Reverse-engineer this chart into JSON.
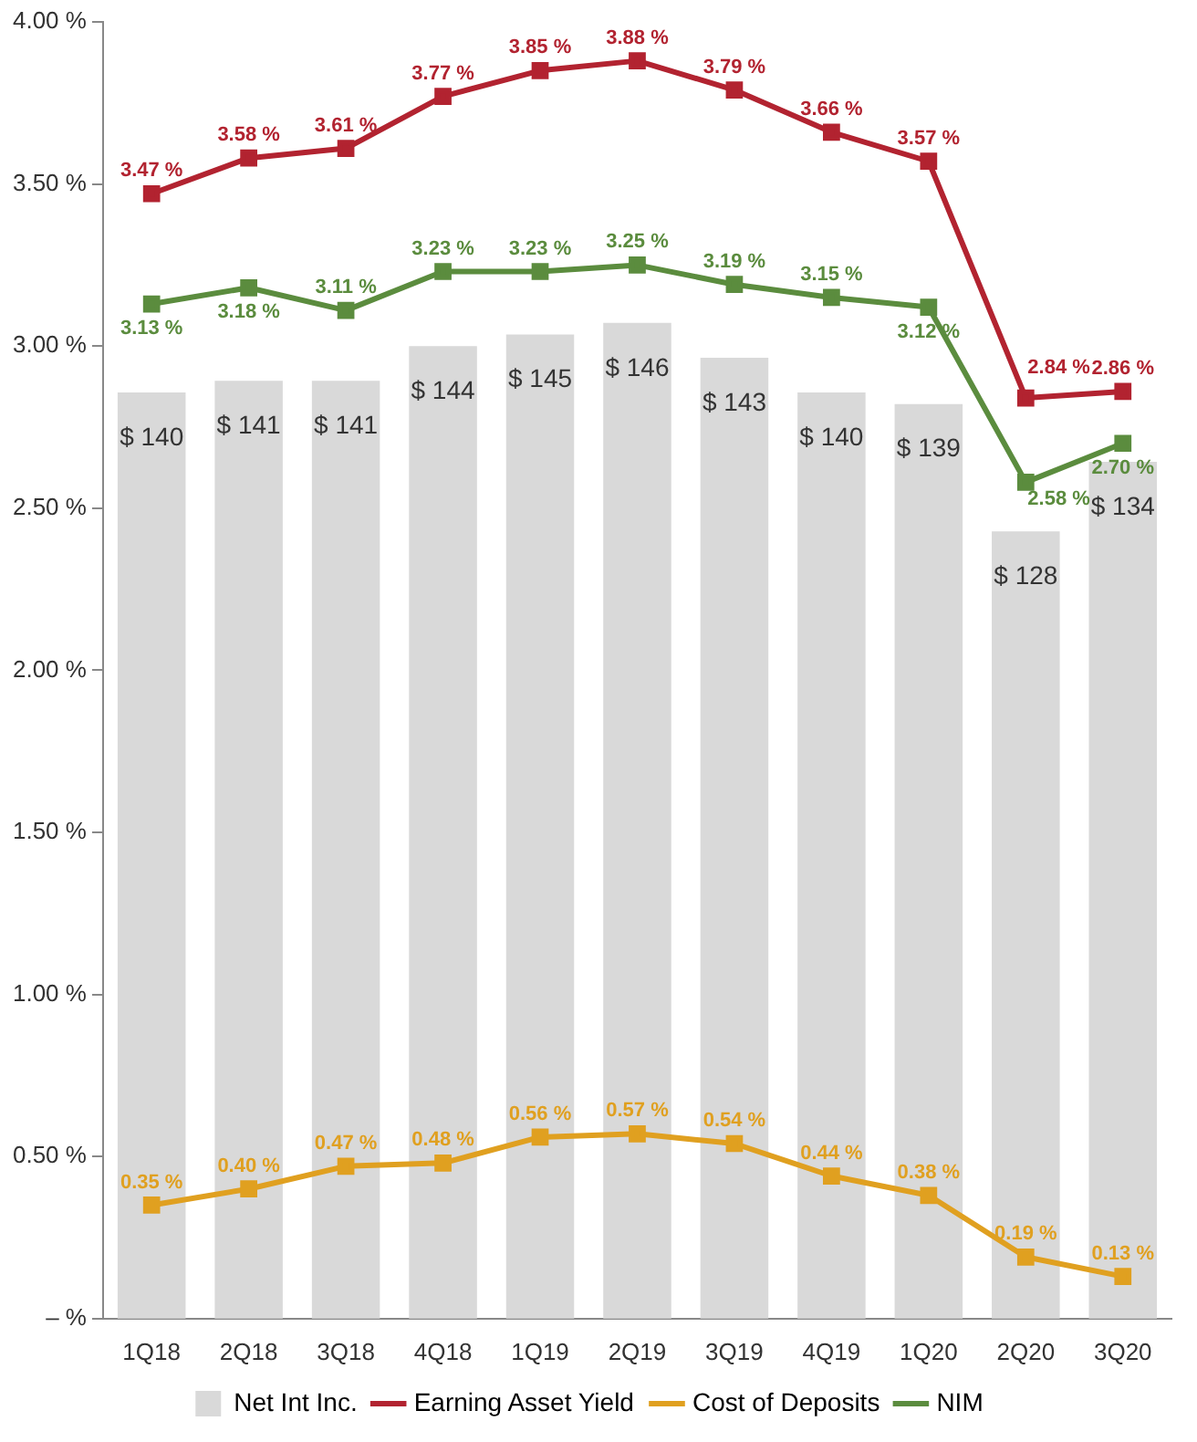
{
  "chart_data": {
    "type": "bar",
    "categories": [
      "1Q18",
      "2Q18",
      "3Q18",
      "4Q18",
      "1Q19",
      "2Q19",
      "3Q19",
      "4Q19",
      "1Q20",
      "2Q20",
      "3Q20"
    ],
    "series": [
      {
        "name": "Net Int Inc.",
        "axis": "y2",
        "color": "#d9d9d9",
        "values": [
          140,
          141,
          141,
          144,
          145,
          146,
          143,
          140,
          139,
          128,
          134
        ],
        "value_labels": [
          "$ 140",
          "$ 141",
          "$ 141",
          "$ 144",
          "$ 145",
          "$ 146",
          "$ 143",
          "$ 140",
          "$ 139",
          "$ 128",
          "$ 134"
        ]
      },
      {
        "name": "Earning Asset Yield",
        "type": "line",
        "color": "#b22330",
        "values": [
          3.47,
          3.58,
          3.61,
          3.77,
          3.85,
          3.88,
          3.79,
          3.66,
          3.57,
          2.84,
          2.86
        ],
        "value_labels": [
          "3.47 %",
          "3.58 %",
          "3.61 %",
          "3.77 %",
          "3.85 %",
          "3.88 %",
          "3.79 %",
          "3.66 %",
          "3.57 %",
          "2.84 %",
          "2.86 %"
        ]
      },
      {
        "name": "Cost of Deposits",
        "type": "line",
        "color": "#e0a020",
        "values": [
          0.35,
          0.4,
          0.47,
          0.48,
          0.56,
          0.57,
          0.54,
          0.44,
          0.38,
          0.19,
          0.13
        ],
        "value_labels": [
          "0.35 %",
          "0.40 %",
          "0.47 %",
          "0.48 %",
          "0.56 %",
          "0.57 %",
          "0.54 %",
          "0.44 %",
          "0.38 %",
          "0.19 %",
          "0.13 %"
        ]
      },
      {
        "name": "NIM",
        "type": "line",
        "color": "#5b8c3e",
        "values": [
          3.13,
          3.18,
          3.11,
          3.23,
          3.23,
          3.25,
          3.19,
          3.15,
          3.12,
          2.58,
          2.7
        ],
        "value_labels": [
          "3.13 %",
          "3.18 %",
          "3.11 %",
          "3.23 %",
          "3.23 %",
          "3.25 %",
          "3.19 %",
          "3.15 %",
          "3.12 %",
          "2.58 %",
          "2.70 %"
        ]
      }
    ],
    "ylim": [
      0,
      4
    ],
    "yticks": [
      {
        "value": 0,
        "label": "– %"
      },
      {
        "value": 0.5,
        "label": "0.50 %"
      },
      {
        "value": 1,
        "label": "1.00 %"
      },
      {
        "value": 1.5,
        "label": "1.50 %"
      },
      {
        "value": 2,
        "label": "2.00 %"
      },
      {
        "value": 2.5,
        "label": "2.50 %"
      },
      {
        "value": 3,
        "label": "3.00 %"
      },
      {
        "value": 3.5,
        "label": "3.50 %"
      },
      {
        "value": 4,
        "label": "4.00 %"
      }
    ],
    "y2lim": [
      60,
      172
    ],
    "tick_labels": [
      "x",
      "y"
    ],
    "grid": false,
    "legend": "bottom",
    "marker": "square",
    "line_style": "solid"
  }
}
